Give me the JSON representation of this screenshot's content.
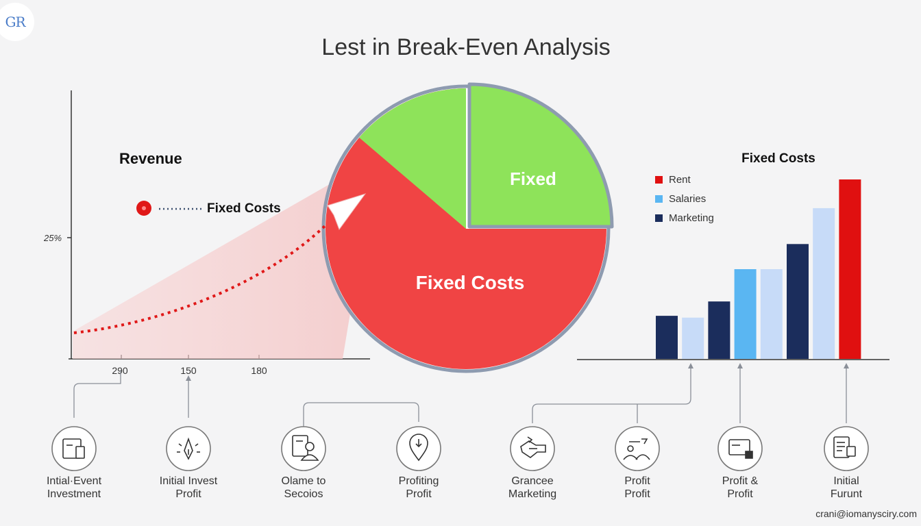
{
  "logo_text": "GR",
  "title": "Lest in Break-Even Analysis",
  "footer": "crani@iomanysciry.com",
  "colors": {
    "red": "#f04444",
    "green": "#8ee35a",
    "pie_border": "#8e9bb0",
    "navy": "#1b2d5c",
    "light_blue": "#5ab6f2",
    "pale_blue": "#c7dbf8",
    "bright_red": "#e01010"
  },
  "chart_data": [
    {
      "type": "line",
      "title": "Revenue",
      "annotation": "Fixed Costs",
      "ytick_label": "25%",
      "x_ticks": [
        "290",
        "150",
        "180"
      ]
    },
    {
      "type": "pie",
      "slices": [
        {
          "label": "Fixed",
          "value": 25,
          "color": "#8ee35a"
        },
        {
          "label": "Fixed Costs",
          "value": 75,
          "color": "#f04444"
        }
      ]
    },
    {
      "type": "bar",
      "title": "Fixed Costs",
      "legend": [
        {
          "label": "Rent",
          "color": "#e01010"
        },
        {
          "label": "Salaries",
          "color": "#5ab6f2"
        },
        {
          "label": "Marketing",
          "color": "#1b2d5c"
        }
      ],
      "ylim": [
        0,
        100
      ],
      "values": [
        24,
        23,
        32,
        50,
        50,
        64,
        84,
        100
      ],
      "colors": [
        "#1b2d5c",
        "#c7dbf8",
        "#1b2d5c",
        "#5ab6f2",
        "#c7dbf8",
        "#1b2d5c",
        "#c7dbf8",
        "#e01010"
      ]
    }
  ],
  "steps": [
    {
      "label": "Intial·Event\nInvestment",
      "icon": "document-icon"
    },
    {
      "label": "Initial Invest\nProfit",
      "icon": "pen-icon"
    },
    {
      "label": "Olame to\nSecoios",
      "icon": "person-document-icon"
    },
    {
      "label": "Profiting\nProfit",
      "icon": "location-pin-icon"
    },
    {
      "label": "Grancee\nMarketing",
      "icon": "handshake-icon"
    },
    {
      "label": "Profit\nProfit",
      "icon": "people-icon"
    },
    {
      "label": "Profit &\nProfit",
      "icon": "card-icon"
    },
    {
      "label": "Initial\nFurunt",
      "icon": "report-icon"
    }
  ]
}
